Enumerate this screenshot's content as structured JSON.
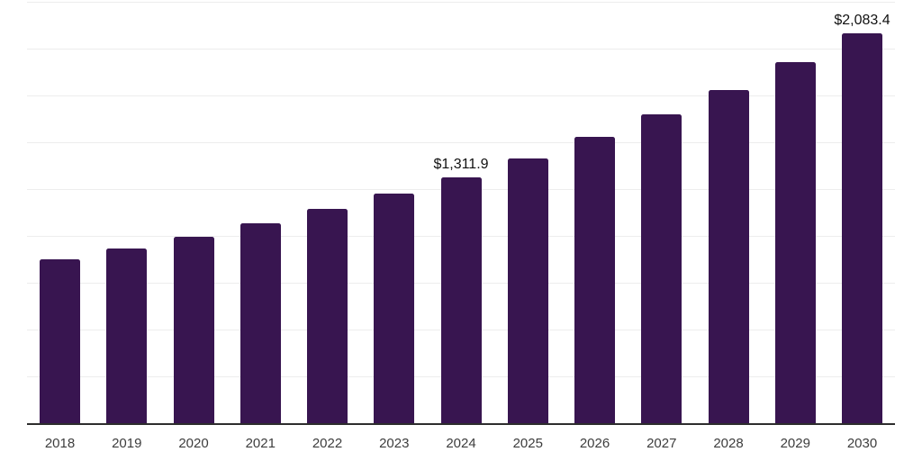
{
  "chart_data": {
    "type": "bar",
    "title": "",
    "xlabel": "",
    "ylabel": "",
    "categories": [
      "2018",
      "2019",
      "2020",
      "2021",
      "2022",
      "2023",
      "2024",
      "2025",
      "2026",
      "2027",
      "2028",
      "2029",
      "2030"
    ],
    "values": [
      875,
      933,
      996,
      1068,
      1142,
      1226,
      1311.9,
      1412,
      1529,
      1650,
      1779,
      1928,
      2083.4
    ],
    "data_labels": [
      {
        "category": "2024",
        "text": "$1,311.9"
      },
      {
        "category": "2030",
        "text": "$2,083.4"
      }
    ],
    "ylim": [
      0,
      2250
    ],
    "grid": true,
    "grid_step": 250,
    "legend": false,
    "y_axis_tick_labels_visible": false
  },
  "colors": {
    "bar": "#381550",
    "gridline": "#ededed",
    "axis": "#2d2d2d",
    "data_label_text": "#111111",
    "tick_label_text": "#3d3d3d",
    "background": "#ffffff"
  }
}
